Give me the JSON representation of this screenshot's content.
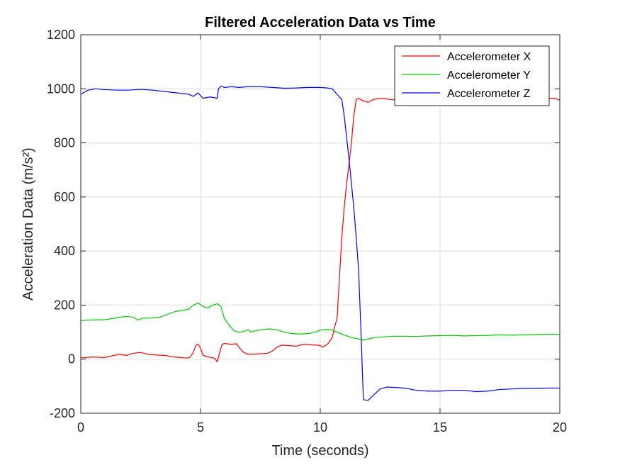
{
  "chart_data": {
    "type": "line",
    "title": "Filtered Acceleration Data vs Time",
    "xlabel": "Time (seconds)",
    "ylabel": "Acceleration Data (m/s²)",
    "xlim": [
      0,
      20
    ],
    "ylim": [
      -200,
      1200
    ],
    "x_ticks": [
      0,
      5,
      10,
      15,
      20
    ],
    "y_ticks": [
      -200,
      0,
      200,
      400,
      600,
      800,
      1000,
      1200
    ],
    "x_tick_labels": [
      "0",
      "5",
      "10",
      "15",
      "20"
    ],
    "y_tick_labels": [
      "-200",
      "0",
      "200",
      "400",
      "600",
      "800",
      "1000",
      "1200"
    ],
    "grid": true,
    "legend_position": "top-right",
    "series": [
      {
        "name": "Accelerometer X",
        "color": "#ff0000",
        "points": [
          [
            0,
            5
          ],
          [
            0.5,
            8
          ],
          [
            1,
            6
          ],
          [
            1.3,
            12
          ],
          [
            1.6,
            18
          ],
          [
            1.9,
            14
          ],
          [
            2.2,
            22
          ],
          [
            2.5,
            25
          ],
          [
            2.8,
            18
          ],
          [
            3.1,
            16
          ],
          [
            3.5,
            14
          ],
          [
            3.9,
            8
          ],
          [
            4.2,
            6
          ],
          [
            4.4,
            4
          ],
          [
            4.55,
            6
          ],
          [
            4.7,
            25
          ],
          [
            4.8,
            50
          ],
          [
            4.9,
            56
          ],
          [
            5.0,
            40
          ],
          [
            5.1,
            15
          ],
          [
            5.3,
            8
          ],
          [
            5.5,
            6
          ],
          [
            5.6,
            2
          ],
          [
            5.7,
            -10
          ],
          [
            5.8,
            25
          ],
          [
            5.9,
            55
          ],
          [
            6.0,
            58
          ],
          [
            6.3,
            55
          ],
          [
            6.5,
            57
          ],
          [
            6.6,
            45
          ],
          [
            6.8,
            25
          ],
          [
            7.0,
            18
          ],
          [
            7.5,
            20
          ],
          [
            7.8,
            22
          ],
          [
            8.0,
            30
          ],
          [
            8.2,
            45
          ],
          [
            8.4,
            52
          ],
          [
            8.7,
            50
          ],
          [
            9.0,
            48
          ],
          [
            9.3,
            55
          ],
          [
            9.6,
            53
          ],
          [
            9.9,
            52
          ],
          [
            10.0,
            50
          ],
          [
            10.1,
            45
          ],
          [
            10.3,
            55
          ],
          [
            10.5,
            80
          ],
          [
            10.6,
            120
          ],
          [
            10.7,
            150
          ],
          [
            10.8,
            300
          ],
          [
            10.9,
            450
          ],
          [
            11.0,
            560
          ],
          [
            11.1,
            650
          ],
          [
            11.2,
            720
          ],
          [
            11.3,
            800
          ],
          [
            11.4,
            900
          ],
          [
            11.5,
            960
          ],
          [
            11.6,
            965
          ],
          [
            11.8,
            955
          ],
          [
            12.0,
            950
          ],
          [
            12.2,
            960
          ],
          [
            12.5,
            965
          ],
          [
            13,
            960
          ],
          [
            13.5,
            955
          ],
          [
            14,
            958
          ],
          [
            14.5,
            962
          ],
          [
            15,
            960
          ],
          [
            15.5,
            958
          ],
          [
            16,
            962
          ],
          [
            16.5,
            960
          ],
          [
            17,
            958
          ],
          [
            17.5,
            962
          ],
          [
            18,
            960
          ],
          [
            18.5,
            962
          ],
          [
            19,
            960
          ],
          [
            19.5,
            965
          ],
          [
            19.8,
            965
          ],
          [
            20,
            958
          ]
        ]
      },
      {
        "name": "Accelerometer Y",
        "color": "#00cc00",
        "points": [
          [
            0,
            143
          ],
          [
            0.5,
            145
          ],
          [
            1,
            146
          ],
          [
            1.3,
            150
          ],
          [
            1.6,
            155
          ],
          [
            1.9,
            158
          ],
          [
            2.2,
            155
          ],
          [
            2.4,
            145
          ],
          [
            2.6,
            152
          ],
          [
            3.0,
            153
          ],
          [
            3.3,
            155
          ],
          [
            3.6,
            165
          ],
          [
            3.9,
            175
          ],
          [
            4.2,
            180
          ],
          [
            4.5,
            185
          ],
          [
            4.7,
            200
          ],
          [
            4.9,
            208
          ],
          [
            5.1,
            195
          ],
          [
            5.3,
            190
          ],
          [
            5.5,
            200
          ],
          [
            5.7,
            205
          ],
          [
            5.85,
            195
          ],
          [
            6.0,
            150
          ],
          [
            6.2,
            125
          ],
          [
            6.4,
            105
          ],
          [
            6.6,
            100
          ],
          [
            6.8,
            102
          ],
          [
            7.0,
            110
          ],
          [
            7.1,
            100
          ],
          [
            7.3,
            105
          ],
          [
            7.6,
            110
          ],
          [
            7.9,
            112
          ],
          [
            8.2,
            108
          ],
          [
            8.5,
            100
          ],
          [
            8.8,
            95
          ],
          [
            9.2,
            93
          ],
          [
            9.5,
            95
          ],
          [
            9.8,
            100
          ],
          [
            10.0,
            108
          ],
          [
            10.3,
            110
          ],
          [
            10.5,
            108
          ],
          [
            10.7,
            100
          ],
          [
            11.0,
            90
          ],
          [
            11.3,
            80
          ],
          [
            11.6,
            75
          ],
          [
            11.8,
            70
          ],
          [
            12.0,
            75
          ],
          [
            12.3,
            80
          ],
          [
            12.6,
            82
          ],
          [
            13,
            85
          ],
          [
            13.5,
            85
          ],
          [
            14,
            84
          ],
          [
            14.5,
            86
          ],
          [
            15,
            87
          ],
          [
            15.5,
            88
          ],
          [
            16,
            86
          ],
          [
            16.5,
            87
          ],
          [
            17,
            88
          ],
          [
            17.5,
            90
          ],
          [
            18,
            89
          ],
          [
            18.5,
            90
          ],
          [
            19,
            91
          ],
          [
            19.5,
            92
          ],
          [
            19.8,
            92
          ],
          [
            20,
            92
          ]
        ]
      },
      {
        "name": "Accelerometer Z",
        "color": "#0000ff",
        "points": [
          [
            0,
            980
          ],
          [
            0.3,
            995
          ],
          [
            0.6,
            1000
          ],
          [
            1.0,
            997
          ],
          [
            1.5,
            995
          ],
          [
            2.0,
            995
          ],
          [
            2.5,
            998
          ],
          [
            3.0,
            995
          ],
          [
            3.5,
            990
          ],
          [
            4.0,
            985
          ],
          [
            4.3,
            982
          ],
          [
            4.5,
            980
          ],
          [
            4.7,
            972
          ],
          [
            4.9,
            985
          ],
          [
            5.1,
            965
          ],
          [
            5.4,
            970
          ],
          [
            5.7,
            965
          ],
          [
            5.75,
            1000
          ],
          [
            5.85,
            1010
          ],
          [
            6.0,
            1005
          ],
          [
            6.3,
            1008
          ],
          [
            6.6,
            1005
          ],
          [
            7.0,
            1008
          ],
          [
            7.5,
            1008
          ],
          [
            8.0,
            1005
          ],
          [
            8.5,
            1002
          ],
          [
            9.0,
            1003
          ],
          [
            9.5,
            1005
          ],
          [
            10.0,
            1005
          ],
          [
            10.3,
            1003
          ],
          [
            10.5,
            1000
          ],
          [
            10.7,
            980
          ],
          [
            10.9,
            960
          ],
          [
            11.0,
            900
          ],
          [
            11.1,
            820
          ],
          [
            11.2,
            740
          ],
          [
            11.3,
            650
          ],
          [
            11.4,
            560
          ],
          [
            11.5,
            450
          ],
          [
            11.6,
            330
          ],
          [
            11.7,
            100
          ],
          [
            11.8,
            -150
          ],
          [
            12.0,
            -152
          ],
          [
            12.2,
            -135
          ],
          [
            12.5,
            -110
          ],
          [
            12.8,
            -103
          ],
          [
            13.2,
            -105
          ],
          [
            13.6,
            -108
          ],
          [
            14.0,
            -115
          ],
          [
            14.5,
            -118
          ],
          [
            15.0,
            -118
          ],
          [
            15.5,
            -115
          ],
          [
            16.0,
            -115
          ],
          [
            16.5,
            -120
          ],
          [
            17.0,
            -118
          ],
          [
            17.5,
            -112
          ],
          [
            18.0,
            -110
          ],
          [
            18.5,
            -108
          ],
          [
            19.0,
            -108
          ],
          [
            19.5,
            -107
          ],
          [
            20,
            -107
          ]
        ]
      }
    ]
  }
}
